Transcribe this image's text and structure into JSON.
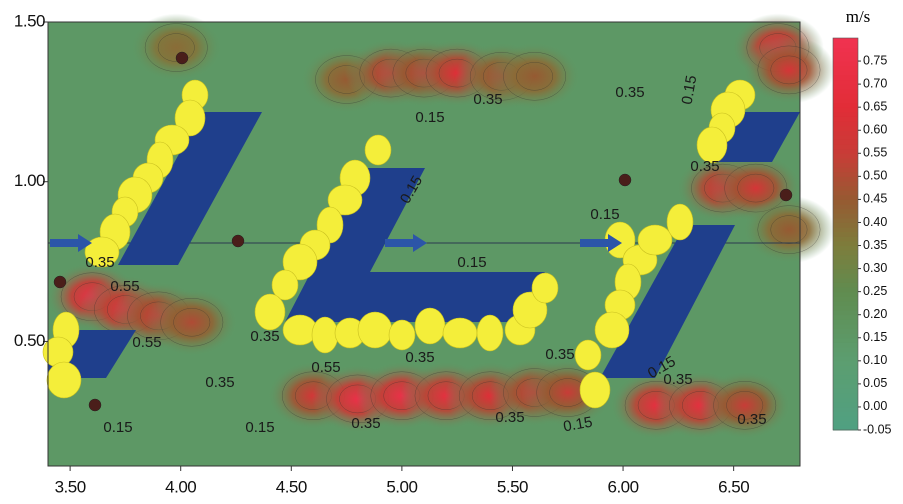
{
  "chart_data": {
    "type": "contour",
    "xlim": [
      3.4,
      6.8
    ],
    "ylim": [
      0.11,
      1.5
    ],
    "xticks": [
      {
        "value": 3.5,
        "label": "3.50"
      },
      {
        "value": 4,
        "label": "4.00"
      },
      {
        "value": 4.5,
        "label": "4.50"
      },
      {
        "value": 5,
        "label": "5.00"
      },
      {
        "value": 5.5,
        "label": "5.50"
      },
      {
        "value": 6,
        "label": "6.00"
      },
      {
        "value": 6.5,
        "label": "6.50"
      }
    ],
    "yticks": [
      {
        "value": 0.5,
        "label": "0.50"
      },
      {
        "value": 1,
        "label": "1.00"
      },
      {
        "value": 1.5,
        "label": "1.50"
      }
    ],
    "colorbar": {
      "unit": "m/s",
      "lim": [
        -0.05,
        0.8
      ],
      "ticks": [
        -0.05,
        {
          "value": 0,
          "label": "0.00"
        },
        0.05,
        {
          "value": 0.1,
          "label": "0.10"
        },
        0.15,
        {
          "value": 0.2,
          "label": "0.20"
        },
        0.25,
        {
          "value": 0.3,
          "label": "0.30"
        },
        0.35,
        {
          "value": 0.4,
          "label": "0.40"
        },
        0.45,
        {
          "value": 0.5,
          "label": "0.50"
        },
        0.55,
        {
          "value": 0.6,
          "label": "0.60"
        },
        0.65,
        {
          "value": 0.7,
          "label": "0.70"
        },
        0.75
      ]
    },
    "background_value": 0.15,
    "hotspots": [
      {
        "x": 4.75,
        "y": 1.32,
        "value": 0.45
      },
      {
        "x": 4.95,
        "y": 1.34,
        "value": 0.6
      },
      {
        "x": 5.1,
        "y": 1.34,
        "value": 0.55
      },
      {
        "x": 5.25,
        "y": 1.34,
        "value": 0.65
      },
      {
        "x": 5.45,
        "y": 1.33,
        "value": 0.5
      },
      {
        "x": 5.6,
        "y": 1.33,
        "value": 0.45
      },
      {
        "x": 4.6,
        "y": 0.33,
        "value": 0.6
      },
      {
        "x": 4.8,
        "y": 0.32,
        "value": 0.75
      },
      {
        "x": 5.0,
        "y": 0.33,
        "value": 0.75
      },
      {
        "x": 5.2,
        "y": 0.33,
        "value": 0.7
      },
      {
        "x": 5.4,
        "y": 0.33,
        "value": 0.65
      },
      {
        "x": 5.6,
        "y": 0.34,
        "value": 0.6
      },
      {
        "x": 5.75,
        "y": 0.34,
        "value": 0.55
      },
      {
        "x": 3.6,
        "y": 0.64,
        "value": 0.75
      },
      {
        "x": 3.75,
        "y": 0.6,
        "value": 0.7
      },
      {
        "x": 3.9,
        "y": 0.58,
        "value": 0.6
      },
      {
        "x": 4.05,
        "y": 0.56,
        "value": 0.5
      },
      {
        "x": 6.15,
        "y": 0.3,
        "value": 0.7
      },
      {
        "x": 6.35,
        "y": 0.3,
        "value": 0.7
      },
      {
        "x": 6.55,
        "y": 0.3,
        "value": 0.55
      },
      {
        "x": 6.7,
        "y": 1.42,
        "value": 0.7
      },
      {
        "x": 6.75,
        "y": 1.35,
        "value": 0.6
      },
      {
        "x": 6.45,
        "y": 0.98,
        "value": 0.65
      },
      {
        "x": 6.6,
        "y": 0.98,
        "value": 0.6
      },
      {
        "x": 6.75,
        "y": 0.85,
        "value": 0.45
      },
      {
        "x": 3.98,
        "y": 1.42,
        "value": 0.4
      }
    ],
    "contour_labels": [
      "0.35",
      "0.35",
      "0.15",
      "0.15",
      "0.15",
      "0.15",
      "0.15",
      "0.55",
      "0.55",
      "0.35",
      "0.55",
      "0.35",
      "0.35",
      "0.35",
      "0.15",
      "0.15",
      "0.35",
      "0.35",
      "0.15",
      "0.15",
      "0.35",
      "0.35",
      "0.35",
      "0.35"
    ]
  }
}
